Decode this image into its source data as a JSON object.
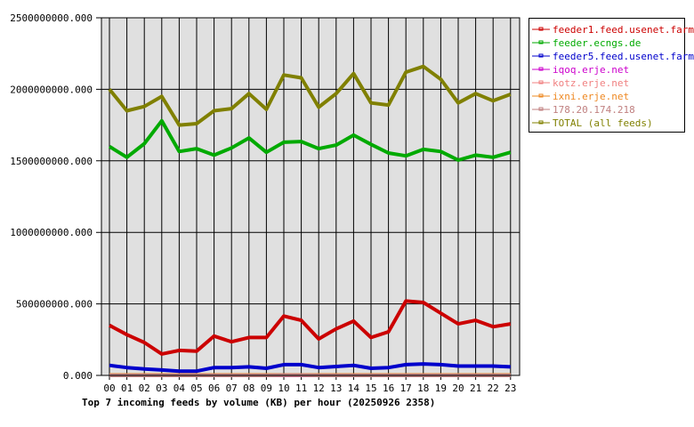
{
  "chart_data": {
    "type": "line",
    "title": "Top 7 incoming feeds by volume (KB) per hour (20250926 2358)",
    "xlabel": "",
    "ylabel": "",
    "ylim": [
      0,
      2500000000
    ],
    "grid": true,
    "legend_position": "right",
    "x": [
      "00",
      "01",
      "02",
      "03",
      "04",
      "05",
      "06",
      "07",
      "08",
      "09",
      "10",
      "11",
      "12",
      "13",
      "14",
      "15",
      "16",
      "17",
      "18",
      "19",
      "20",
      "21",
      "22",
      "23"
    ],
    "yticks": [
      "0.000",
      "500000000.000",
      "1000000000.000",
      "1500000000.000",
      "2000000000.000",
      "2500000000.000"
    ],
    "series": [
      {
        "name": "feeder1.feed.usenet.farm",
        "color": "#cc0000",
        "values": [
          350000000,
          285000000,
          230000000,
          150000000,
          175000000,
          170000000,
          275000000,
          235000000,
          265000000,
          265000000,
          415000000,
          385000000,
          255000000,
          325000000,
          380000000,
          265000000,
          305000000,
          520000000,
          510000000,
          435000000,
          360000000,
          385000000,
          340000000,
          360000000
        ]
      },
      {
        "name": "feeder.ecngs.de",
        "color": "#00aa00",
        "values": [
          1600000000,
          1525000000,
          1620000000,
          1780000000,
          1565000000,
          1585000000,
          1540000000,
          1590000000,
          1660000000,
          1560000000,
          1630000000,
          1635000000,
          1585000000,
          1610000000,
          1680000000,
          1615000000,
          1555000000,
          1535000000,
          1580000000,
          1565000000,
          1505000000,
          1540000000,
          1525000000,
          1560000000
        ]
      },
      {
        "name": "feeder5.feed.usenet.farm",
        "color": "#0000cc",
        "values": [
          70000000,
          55000000,
          45000000,
          38000000,
          30000000,
          30000000,
          55000000,
          55000000,
          60000000,
          50000000,
          75000000,
          75000000,
          55000000,
          62000000,
          70000000,
          50000000,
          55000000,
          75000000,
          80000000,
          75000000,
          65000000,
          65000000,
          65000000,
          60000000
        ]
      },
      {
        "name": "iqoq.erje.net",
        "color": "#cc00cc",
        "values": [
          0,
          0,
          0,
          0,
          0,
          0,
          0,
          0,
          0,
          0,
          0,
          0,
          0,
          0,
          0,
          0,
          0,
          0,
          0,
          0,
          0,
          0,
          0,
          0
        ]
      },
      {
        "name": "kotz.erje.net",
        "color": "#f08080",
        "values": [
          2000000,
          2000000,
          2000000,
          2000000,
          2000000,
          2000000,
          2000000,
          2000000,
          2000000,
          2000000,
          2000000,
          2000000,
          2000000,
          2000000,
          2000000,
          2000000,
          2000000,
          2000000,
          2000000,
          2000000,
          2000000,
          2000000,
          2000000,
          2000000
        ]
      },
      {
        "name": "ixni.erje.net",
        "color": "#ee8822",
        "values": [
          3000000,
          3000000,
          3000000,
          3000000,
          3000000,
          3000000,
          3000000,
          3000000,
          3000000,
          3000000,
          3000000,
          3000000,
          3000000,
          3000000,
          3000000,
          3000000,
          3000000,
          3000000,
          3000000,
          3000000,
          3000000,
          3000000,
          3000000,
          3000000
        ]
      },
      {
        "name": "178.20.174.218",
        "color": "#c08080",
        "values": [
          0,
          0,
          0,
          0,
          0,
          0,
          0,
          0,
          0,
          0,
          1000000,
          1000000,
          0,
          0,
          0,
          0,
          0,
          0,
          0,
          0,
          0,
          0,
          0,
          0
        ]
      },
      {
        "name": "TOTAL (all feeds)",
        "color": "#808000",
        "values": [
          2000000000,
          1850000000,
          1880000000,
          1950000000,
          1750000000,
          1760000000,
          1850000000,
          1865000000,
          1970000000,
          1860000000,
          2100000000,
          2080000000,
          1875000000,
          1970000000,
          2110000000,
          1905000000,
          1890000000,
          2120000000,
          2160000000,
          2070000000,
          1905000000,
          1970000000,
          1920000000,
          1965000000
        ]
      }
    ]
  }
}
